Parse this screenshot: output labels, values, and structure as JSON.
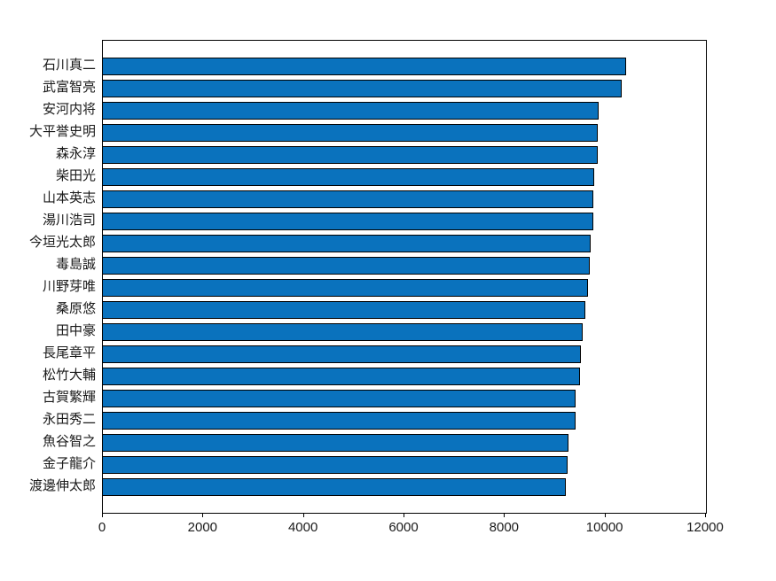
{
  "chart_data": {
    "type": "bar",
    "orientation": "horizontal",
    "title": "",
    "xlabel": "",
    "ylabel": "",
    "grid": false,
    "legend": null,
    "xlim": [
      0,
      12000
    ],
    "x_ticks": [
      "0",
      "2000",
      "4000",
      "6000",
      "8000",
      "10000",
      "12000"
    ],
    "x_tick_values": [
      0,
      2000,
      4000,
      6000,
      8000,
      10000,
      12000
    ],
    "bar_color": "#0a72bd",
    "bar_edge_color": "#000000",
    "categories": [
      "石川真二",
      "武富智亮",
      "安河内将",
      "大平誉史明",
      "森永淳",
      "柴田光",
      "山本英志",
      "湯川浩司",
      "今垣光太郎",
      "毒島誠",
      "川野芽唯",
      "桑原悠",
      "田中豪",
      "長尾章平",
      "松竹大輔",
      "古賀繁輝",
      "永田秀二",
      "魚谷智之",
      "金子龍介",
      "渡邊伸太郎"
    ],
    "values": [
      10410,
      10330,
      9860,
      9850,
      9850,
      9770,
      9760,
      9750,
      9700,
      9680,
      9660,
      9600,
      9550,
      9510,
      9500,
      9410,
      9400,
      9270,
      9240,
      9220
    ]
  }
}
